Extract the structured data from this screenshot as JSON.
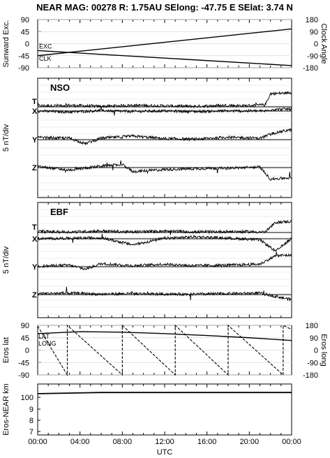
{
  "title": "NEAR MAG: 00278  R: 1.75AU  SElong:  -47.75 E  SElat:    3.74 N",
  "colors": {
    "line": "#000000",
    "grid": "#d9d9d9",
    "background": "#ffffff"
  },
  "chart_data": [
    {
      "type": "line",
      "panel": "geometry",
      "ylabel": "Sunward Exc.",
      "ylabel_right": "Clock Angle",
      "ylim": [
        -90,
        90
      ],
      "yticks": [
        "90",
        "45",
        "0",
        "-45",
        "-90"
      ],
      "ylim_right": [
        -180,
        180
      ],
      "yticks_right": [
        "180",
        "90",
        "0",
        "-90",
        "-180"
      ],
      "annotations": [
        "EXC",
        "CLK"
      ],
      "series": [
        {
          "name": "CLK",
          "x_hours": [
            0,
            24
          ],
          "values": [
            -45,
            55
          ]
        },
        {
          "name": "EXC",
          "x_hours": [
            0,
            24
          ],
          "values": [
            -26,
            -82
          ]
        }
      ]
    },
    {
      "type": "line",
      "panel": "NSO",
      "label": "NSO",
      "ylabel": "5 nT/div",
      "traces": [
        "T",
        "X",
        "Y",
        "Z"
      ],
      "series": [
        {
          "name": "T",
          "x_hours": [
            0,
            3,
            6,
            9,
            12,
            15,
            18,
            19.5,
            21.5,
            22,
            24
          ],
          "values": [
            0.2,
            0.3,
            0.1,
            0.3,
            0.2,
            0.1,
            0.3,
            0.2,
            0.4,
            2.6,
            2.8
          ]
        },
        {
          "name": "X",
          "x_hours": [
            0,
            3,
            6,
            9,
            12,
            15,
            18,
            21.5,
            22,
            24
          ],
          "values": [
            0,
            -0.2,
            0.1,
            -0.1,
            0,
            -0.1,
            0,
            0,
            0.3,
            0.4
          ]
        },
        {
          "name": "Y",
          "x_hours": [
            0,
            3,
            4.5,
            6,
            9,
            12,
            15,
            18,
            21,
            22.5,
            24
          ],
          "values": [
            0.4,
            0.3,
            -0.8,
            0.3,
            0.7,
            0.2,
            0.1,
            0.5,
            0.3,
            1.4,
            2.0
          ]
        },
        {
          "name": "Z",
          "x_hours": [
            0,
            3,
            6,
            8,
            9,
            12,
            15,
            18,
            21,
            22,
            24
          ],
          "values": [
            0.2,
            -0.5,
            0.3,
            0.6,
            -0.8,
            -0.4,
            -0.2,
            -0.1,
            0.1,
            -2.3,
            -2.0
          ]
        }
      ]
    },
    {
      "type": "line",
      "panel": "EBF",
      "label": "EBF",
      "ylabel": "5 nT/div",
      "traces": [
        "T",
        "X",
        "Y",
        "Z"
      ],
      "series": [
        {
          "name": "T",
          "x_hours": [
            0,
            3,
            6,
            9,
            12,
            15,
            18,
            21.5,
            22.5,
            24
          ],
          "values": [
            0.2,
            0.1,
            0.3,
            0.1,
            0.3,
            0.1,
            0.2,
            0.1,
            2.0,
            2.2
          ]
        },
        {
          "name": "X",
          "x_hours": [
            0,
            3,
            6,
            9,
            12,
            15,
            18,
            21,
            22.5,
            24
          ],
          "values": [
            0,
            0.1,
            0.2,
            -1.2,
            0.1,
            0.4,
            0.1,
            -0.2,
            -2.5,
            0.1
          ]
        },
        {
          "name": "Y",
          "x_hours": [
            0,
            3,
            4.5,
            6,
            9,
            12,
            15,
            18,
            21,
            22.5,
            24
          ],
          "values": [
            0.1,
            0.3,
            -0.5,
            0.6,
            0.2,
            0.5,
            0.2,
            0.3,
            0.5,
            2.2,
            2.3
          ]
        },
        {
          "name": "Z",
          "x_hours": [
            0,
            3,
            6,
            9,
            12,
            15,
            18,
            21,
            24
          ],
          "values": [
            0.2,
            0.3,
            0.1,
            0.2,
            0.1,
            0.1,
            0.2,
            0.3,
            -1.0
          ]
        }
      ]
    },
    {
      "type": "line",
      "panel": "eros",
      "ylabel": "Eros lat",
      "ylabel_right": "Eros long",
      "ylim": [
        -90,
        90
      ],
      "yticks": [
        "90",
        "45",
        "0",
        "-45",
        "-90"
      ],
      "ylim_right": [
        -180,
        180
      ],
      "yticks_right": [
        "180",
        "90",
        "0",
        "-90",
        "-180"
      ],
      "annotations": [
        "LAT",
        "LONG"
      ],
      "series": [
        {
          "name": "LAT",
          "x_hours": [
            0,
            4,
            8,
            12,
            16,
            20,
            24
          ],
          "values": [
            60,
            67,
            65,
            60,
            53,
            45,
            35
          ]
        },
        {
          "name": "LONG",
          "x_hours": [
            0,
            2.8,
            2.8,
            8.0,
            8.0,
            13.0,
            13.0,
            18.0,
            18.0,
            23.2,
            23.2,
            24
          ],
          "values": [
            175,
            -180,
            180,
            -180,
            180,
            -180,
            180,
            -180,
            180,
            -180,
            180,
            150
          ]
        }
      ]
    },
    {
      "type": "line",
      "panel": "range",
      "ylabel": "Eros-NEAR km",
      "yscale": "log",
      "yticks": [
        "100",
        "9",
        "8",
        "7"
      ],
      "series": [
        {
          "name": "range",
          "x_hours": [
            0,
            6,
            24
          ],
          "values": [
            103,
            104,
            104
          ]
        }
      ]
    }
  ],
  "xaxis": {
    "label": "UTC",
    "ticks": [
      "00:00",
      "04:00",
      "08:00",
      "12:00",
      "16:00",
      "20:00",
      "00:00"
    ]
  }
}
